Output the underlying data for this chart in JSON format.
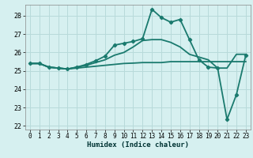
{
  "xlabel": "Humidex (Indice chaleur)",
  "bg_color": "#d6f0f0",
  "grid_color": "#b8dada",
  "line_color": "#1a7a6e",
  "xlim": [
    -0.5,
    23.5
  ],
  "ylim": [
    21.8,
    28.6
  ],
  "yticks": [
    22,
    23,
    24,
    25,
    26,
    27,
    28
  ],
  "xticks": [
    0,
    1,
    2,
    3,
    4,
    5,
    6,
    7,
    8,
    9,
    10,
    11,
    12,
    13,
    14,
    15,
    16,
    17,
    18,
    19,
    20,
    21,
    22,
    23
  ],
  "series": [
    {
      "x": [
        0,
        1,
        2,
        3,
        4,
        5,
        6,
        7,
        8,
        9,
        10,
        11,
        12,
        13,
        14,
        15,
        16,
        17,
        18,
        19,
        20,
        21,
        22,
        23
      ],
      "y": [
        25.4,
        25.4,
        25.2,
        25.15,
        25.1,
        25.15,
        25.2,
        25.25,
        25.3,
        25.35,
        25.4,
        25.42,
        25.45,
        25.45,
        25.45,
        25.5,
        25.5,
        25.5,
        25.5,
        25.5,
        25.5,
        25.5,
        25.5,
        25.5
      ],
      "marker": false,
      "lw": 1.3
    },
    {
      "x": [
        0,
        1,
        2,
        3,
        4,
        5,
        6,
        7,
        8,
        9,
        10,
        11,
        12,
        13,
        14,
        15,
        16,
        17,
        18,
        19,
        20,
        21,
        22,
        23
      ],
      "y": [
        25.4,
        25.4,
        25.2,
        25.15,
        25.1,
        25.2,
        25.3,
        25.45,
        25.6,
        25.85,
        26.0,
        26.3,
        26.65,
        26.7,
        26.7,
        26.55,
        26.3,
        25.9,
        25.75,
        25.6,
        25.15,
        25.15,
        25.9,
        25.9
      ],
      "marker": false,
      "lw": 1.3
    },
    {
      "x": [
        0,
        1,
        2,
        3,
        4,
        5,
        6,
        7,
        8,
        9,
        10,
        11,
        12,
        13,
        14,
        15,
        16,
        17,
        18,
        19,
        20,
        21,
        22,
        23
      ],
      "y": [
        25.4,
        25.4,
        25.2,
        25.15,
        25.1,
        25.2,
        25.35,
        25.55,
        25.8,
        26.4,
        26.5,
        26.6,
        26.75,
        28.35,
        27.9,
        27.65,
        27.8,
        26.7,
        25.6,
        25.2,
        25.15,
        22.35,
        23.7,
        25.85
      ],
      "marker": true,
      "lw": 1.3
    }
  ]
}
